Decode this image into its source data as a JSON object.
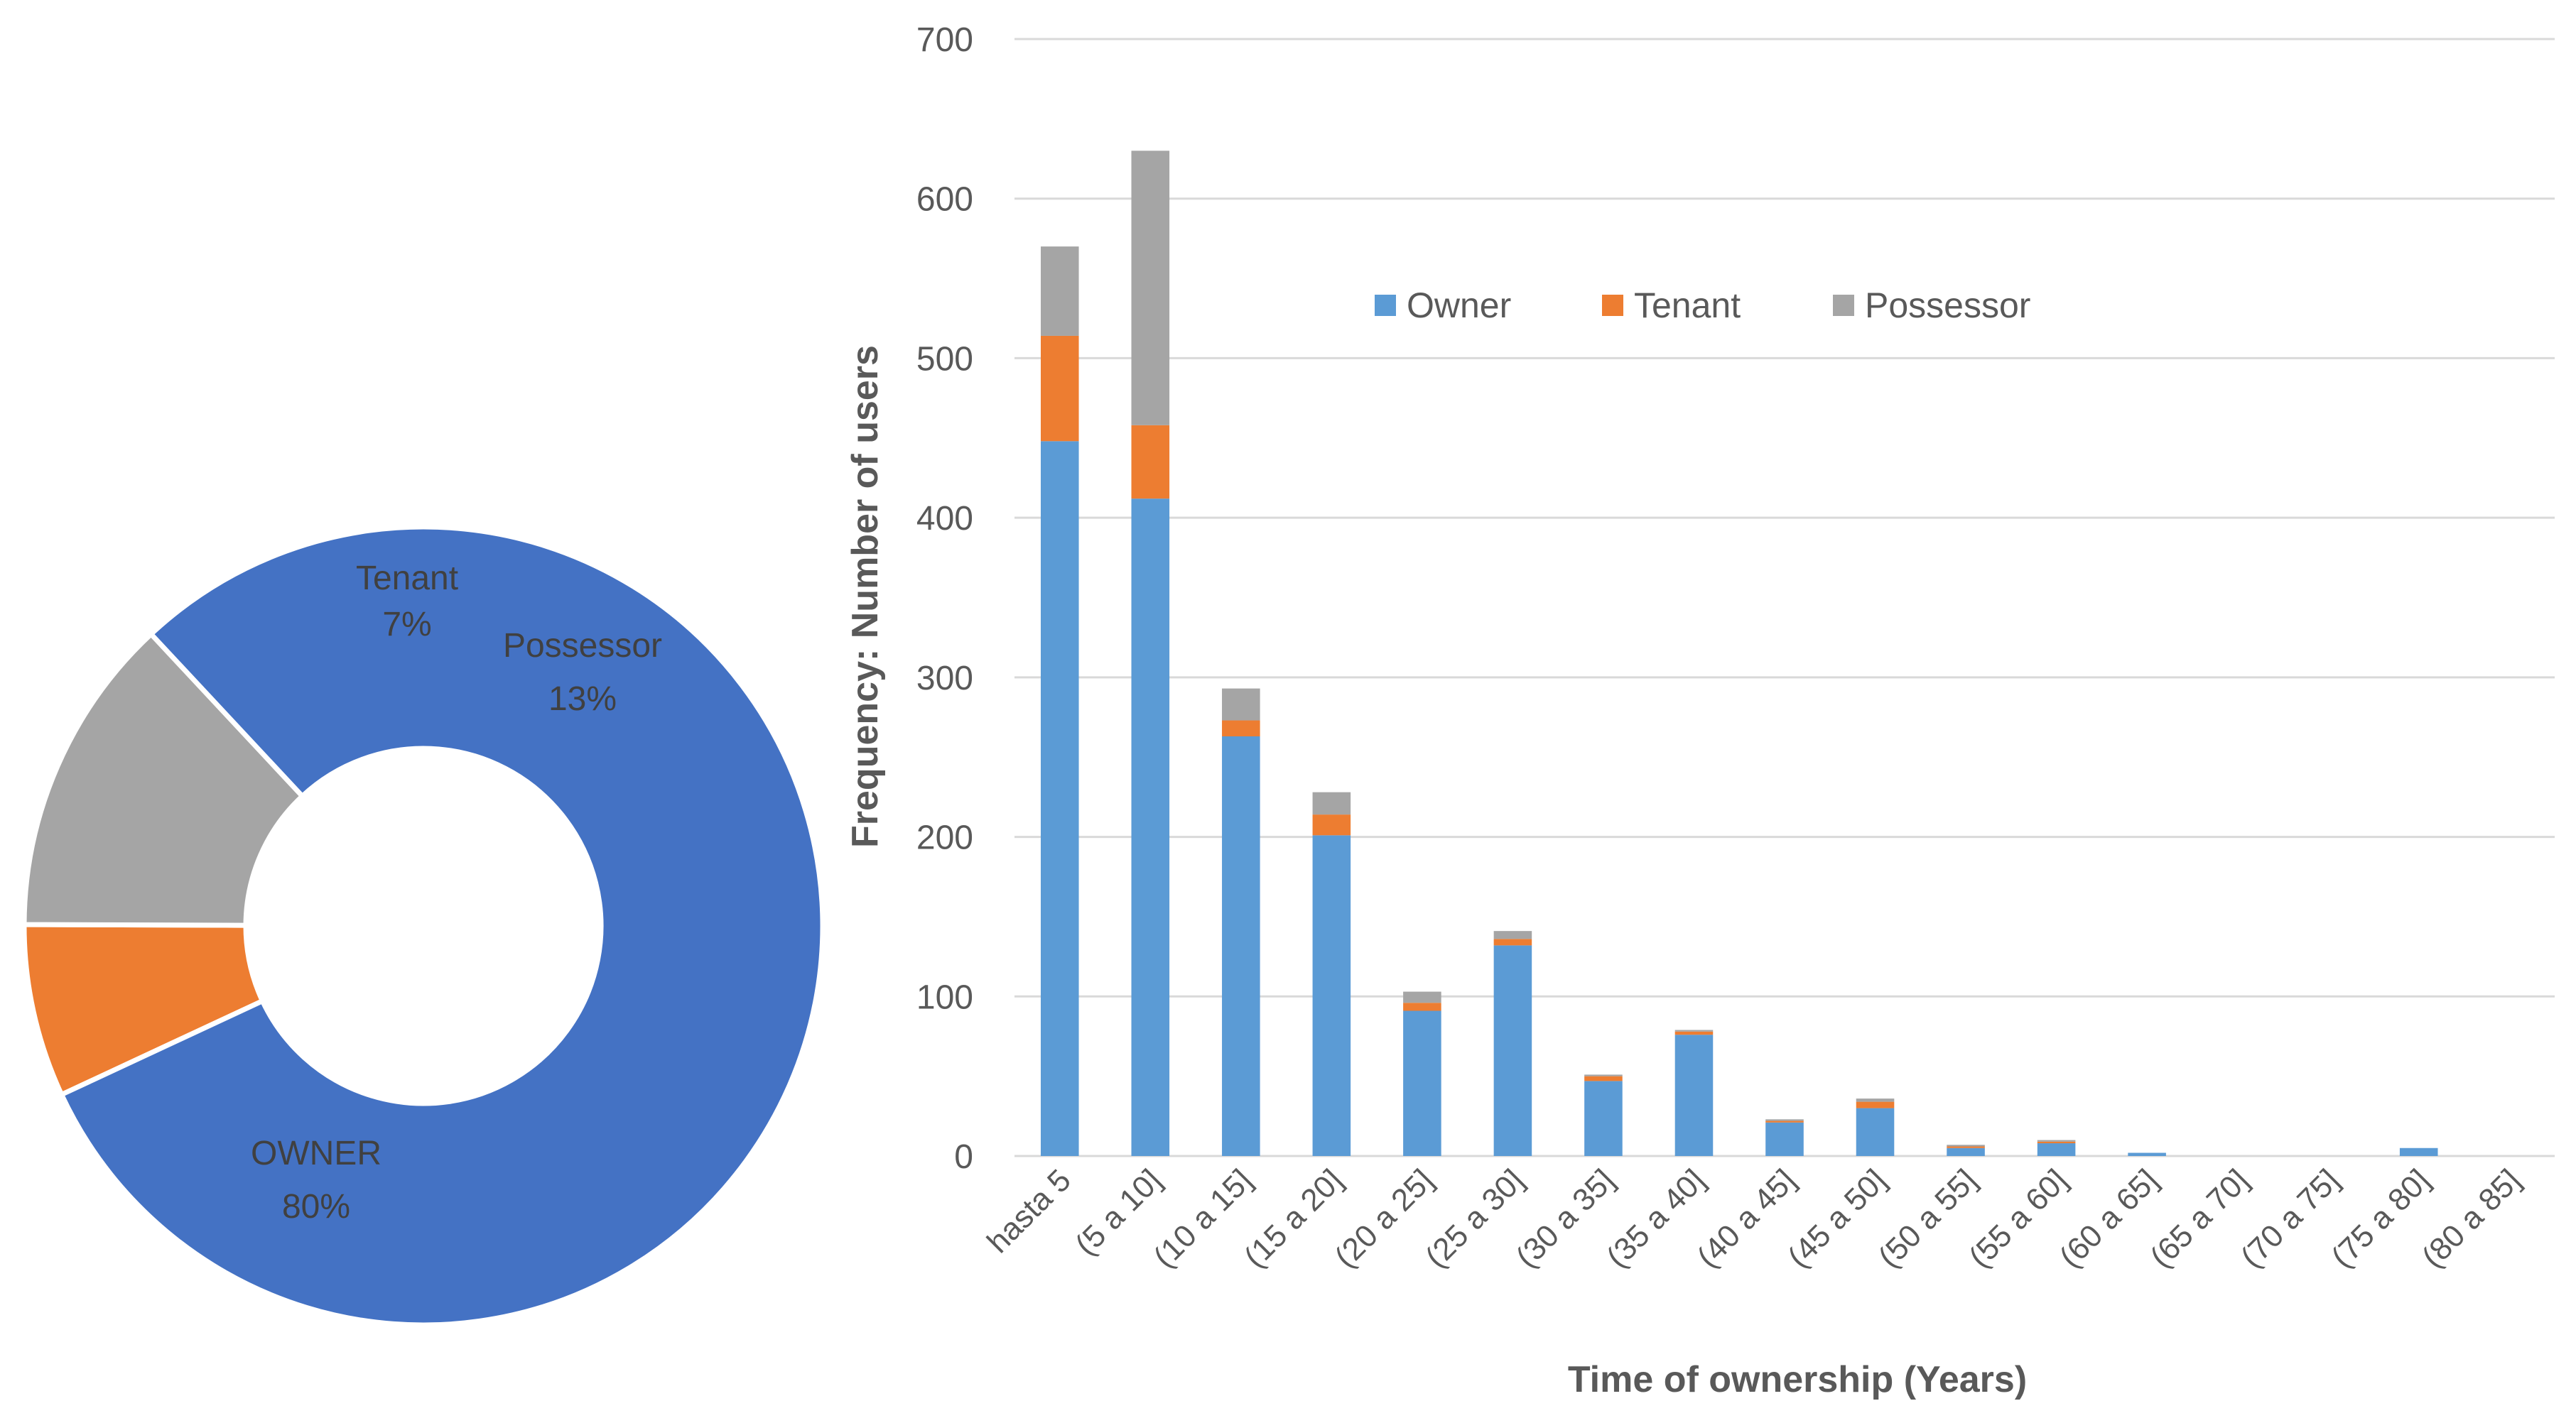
{
  "chart_data": [
    {
      "type": "pie",
      "variant": "donut",
      "title": "",
      "slices": [
        {
          "label": "OWNER",
          "value": 80,
          "pct_label": "80%",
          "color": "#4472C4"
        },
        {
          "label": "Tenant",
          "value": 7,
          "pct_label": "7%",
          "color": "#ED7D31"
        },
        {
          "label": "Possessor",
          "value": 13,
          "pct_label": "13%",
          "color": "#A5A5A5"
        }
      ]
    },
    {
      "type": "bar",
      "stacked": true,
      "title": "",
      "xlabel": "Time of ownership (Years)",
      "ylabel": "Frequency: Number of users",
      "ylim": [
        0,
        700
      ],
      "yticks": [
        0,
        100,
        200,
        300,
        400,
        500,
        600,
        700
      ],
      "grid": true,
      "legend": "top-center",
      "categories": [
        "hasta 5",
        "(5 a 10]",
        "(10 a 15]",
        "(15 a 20]",
        "(20 a 25]",
        "(25 a 30]",
        "(30 a 35]",
        "(35 a 40]",
        "(40 a 45]",
        "(45 a 50]",
        "(50 a 55]",
        "(55 a 60]",
        "(60 a 65]",
        "(65 a 70]",
        "(70 a 75]",
        "(75 a 80]",
        "(80 a 85]"
      ],
      "series": [
        {
          "name": "Owner",
          "color": "#5B9BD5",
          "values": [
            448,
            412,
            263,
            201,
            91,
            132,
            47,
            76,
            21,
            30,
            5,
            8,
            2,
            0,
            0,
            5,
            0
          ]
        },
        {
          "name": "Tenant",
          "color": "#ED7D31",
          "values": [
            66,
            46,
            10,
            13,
            5,
            4,
            3,
            2,
            1,
            4,
            1,
            1,
            0,
            0,
            0,
            0,
            0
          ]
        },
        {
          "name": "Possessor",
          "color": "#A5A5A5",
          "values": [
            56,
            172,
            20,
            14,
            7,
            5,
            1,
            1,
            1,
            2,
            1,
            1,
            0,
            0,
            0,
            0,
            0
          ]
        }
      ]
    }
  ]
}
